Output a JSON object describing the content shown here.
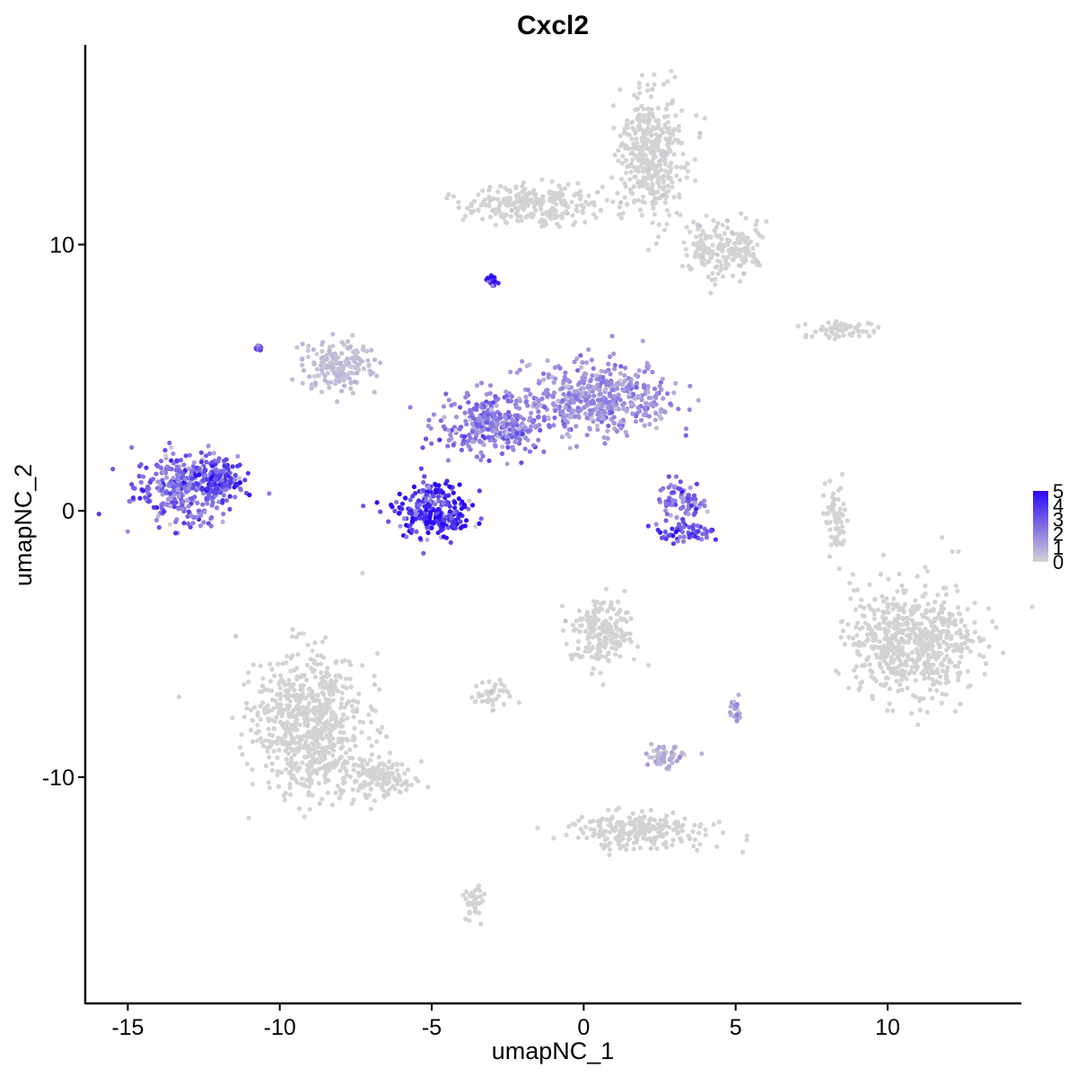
{
  "chart_data": {
    "type": "scatter",
    "title": "Cxcl2",
    "xlabel": "umapNC_1",
    "ylabel": "umapNC_2",
    "xlim": [
      -16.4,
      14.4
    ],
    "ylim": [
      -18.5,
      17.5
    ],
    "xticks": [
      -15,
      -10,
      -5,
      0,
      5,
      10
    ],
    "xtick_labels": [
      "-15",
      "-10",
      "-5",
      "0",
      "5",
      "10"
    ],
    "yticks": [
      -10,
      0,
      10
    ],
    "ytick_labels": [
      "-10",
      "0",
      "10"
    ],
    "grid": false,
    "legend": {
      "position": "right",
      "type": "colorbar",
      "low_color": "#d3d3d3",
      "high_color": "#2a0af5",
      "range": [
        0,
        5
      ],
      "labels": [
        "0",
        "1",
        "2",
        "3",
        "4",
        "5"
      ]
    },
    "clusters": [
      {
        "center": [
          -13.1,
          0.9
        ],
        "spread": [
          1.4,
          1.1
        ],
        "expression": 2.6
      },
      {
        "center": [
          -12.0,
          1.2
        ],
        "spread": [
          0.7,
          0.6
        ],
        "expression": 3.4
      },
      {
        "center": [
          -8.1,
          5.5
        ],
        "spread": [
          1.0,
          0.8
        ],
        "expression": 0.5
      },
      {
        "center": [
          -5.0,
          0.1
        ],
        "spread": [
          1.0,
          0.9
        ],
        "expression": 3.9
      },
      {
        "center": [
          -4.6,
          -0.4
        ],
        "spread": [
          0.7,
          0.4
        ],
        "expression": 4.6
      },
      {
        "center": [
          -3.0,
          3.2
        ],
        "spread": [
          1.5,
          0.9
        ],
        "expression": 2.1
      },
      {
        "center": [
          0.5,
          4.2
        ],
        "spread": [
          2.0,
          1.1
        ],
        "expression": 1.6
      },
      {
        "center": [
          3.2,
          0.4
        ],
        "spread": [
          0.6,
          0.6
        ],
        "expression": 2.5
      },
      {
        "center": [
          3.4,
          -0.8
        ],
        "spread": [
          0.9,
          0.3
        ],
        "expression": 3.2
      },
      {
        "center": [
          2.2,
          13.3
        ],
        "spread": [
          0.9,
          2.0
        ],
        "expression": 0.1
      },
      {
        "center": [
          -1.5,
          11.5
        ],
        "spread": [
          2.0,
          0.6
        ],
        "expression": 0.2
      },
      {
        "center": [
          4.5,
          9.8
        ],
        "spread": [
          1.0,
          0.9
        ],
        "expression": 0.3
      },
      {
        "center": [
          8.5,
          6.8
        ],
        "spread": [
          1.0,
          0.3
        ],
        "expression": 0.1
      },
      {
        "center": [
          10.9,
          -4.9
        ],
        "spread": [
          1.7,
          1.7
        ],
        "expression": 0.05
      },
      {
        "center": [
          -9.0,
          -8.0
        ],
        "spread": [
          1.5,
          2.2
        ],
        "expression": 0.05
      },
      {
        "center": [
          -6.8,
          -10.0
        ],
        "spread": [
          1.0,
          0.6
        ],
        "expression": 0.1
      },
      {
        "center": [
          0.6,
          -4.5
        ],
        "spread": [
          0.9,
          1.0
        ],
        "expression": 0.2
      },
      {
        "center": [
          -3.0,
          -6.9
        ],
        "spread": [
          0.5,
          0.4
        ],
        "expression": 0.3
      },
      {
        "center": [
          2.6,
          -9.2
        ],
        "spread": [
          0.6,
          0.4
        ],
        "expression": 0.9
      },
      {
        "center": [
          1.8,
          -12.0
        ],
        "spread": [
          1.8,
          0.6
        ],
        "expression": 0.05
      },
      {
        "center": [
          -3.6,
          -14.8
        ],
        "spread": [
          0.3,
          0.6
        ],
        "expression": 0.05
      },
      {
        "center": [
          8.3,
          -0.3
        ],
        "spread": [
          0.3,
          1.0
        ],
        "expression": 0.1
      },
      {
        "center": [
          5.0,
          -7.4
        ],
        "spread": [
          0.2,
          0.3
        ],
        "expression": 1.5
      },
      {
        "center": [
          -3.0,
          8.6
        ],
        "spread": [
          0.2,
          0.15
        ],
        "expression": 4.7
      },
      {
        "center": [
          -10.7,
          6.1
        ],
        "spread": [
          0.1,
          0.1
        ],
        "expression": 2.5
      }
    ]
  }
}
